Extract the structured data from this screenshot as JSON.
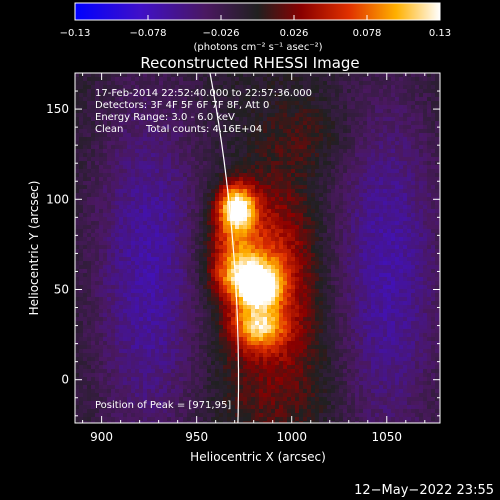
{
  "colorbar": {
    "ticks": [
      "−0.13",
      "−0.078",
      "−0.026",
      "0.026",
      "0.078",
      "0.13"
    ],
    "units": "(photons cm⁻² s⁻¹ asec⁻²)",
    "min": -0.13,
    "max": 0.13
  },
  "chart_data": {
    "type": "heatmap",
    "title": "Reconstructed RHESSI Image",
    "xlabel": "Heliocentric X (arcsec)",
    "ylabel": "Heliocentric Y (arcsec)",
    "xlim": [
      886,
      1078
    ],
    "ylim": [
      -24,
      170
    ],
    "x_ticks": [
      900,
      950,
      1000,
      1050
    ],
    "y_ticks": [
      0,
      50,
      100,
      150
    ],
    "annotations": {
      "time_range": "17-Feb-2014 22:52:40.000 to 22:57:36.000",
      "detectors": "Detectors: 3F 4F 5F 6F 7F 8F, Att 0",
      "energy": "Energy Range: 3.0 - 6.0 keV",
      "method": "Clean",
      "counts": "Total counts: 4.16E+04",
      "peak": "Position of Peak = [971,95]"
    },
    "sources": [
      {
        "x": 971,
        "y": 96,
        "sx": 7,
        "sy": 9,
        "amp": 0.13
      },
      {
        "x": 976,
        "y": 57,
        "sx": 12,
        "sy": 10,
        "amp": 0.105
      },
      {
        "x": 982,
        "y": 30,
        "sx": 10,
        "sy": 9,
        "amp": 0.09
      },
      {
        "x": 983,
        "y": 50,
        "sx": 7,
        "sy": 6,
        "amp": 0.08
      },
      {
        "x": 968,
        "y": 78,
        "sx": 10,
        "sy": 13,
        "amp": 0.055
      },
      {
        "x": 992,
        "y": 75,
        "sx": 14,
        "sy": 28,
        "amp": 0.04
      },
      {
        "x": 992,
        "y": 20,
        "sx": 22,
        "sy": 38,
        "amp": 0.035
      },
      {
        "x": 1010,
        "y": 135,
        "sx": 16,
        "sy": 14,
        "amp": 0.02
      }
    ],
    "negative_lobes": [
      {
        "x": 925,
        "y": 60,
        "sx": 22,
        "sy": 75,
        "amp": -0.06
      },
      {
        "x": 1050,
        "y": 60,
        "sx": 22,
        "sy": 75,
        "amp": -0.06
      }
    ],
    "limb_line": true,
    "timestamp": "12−May−2022 23:55"
  }
}
